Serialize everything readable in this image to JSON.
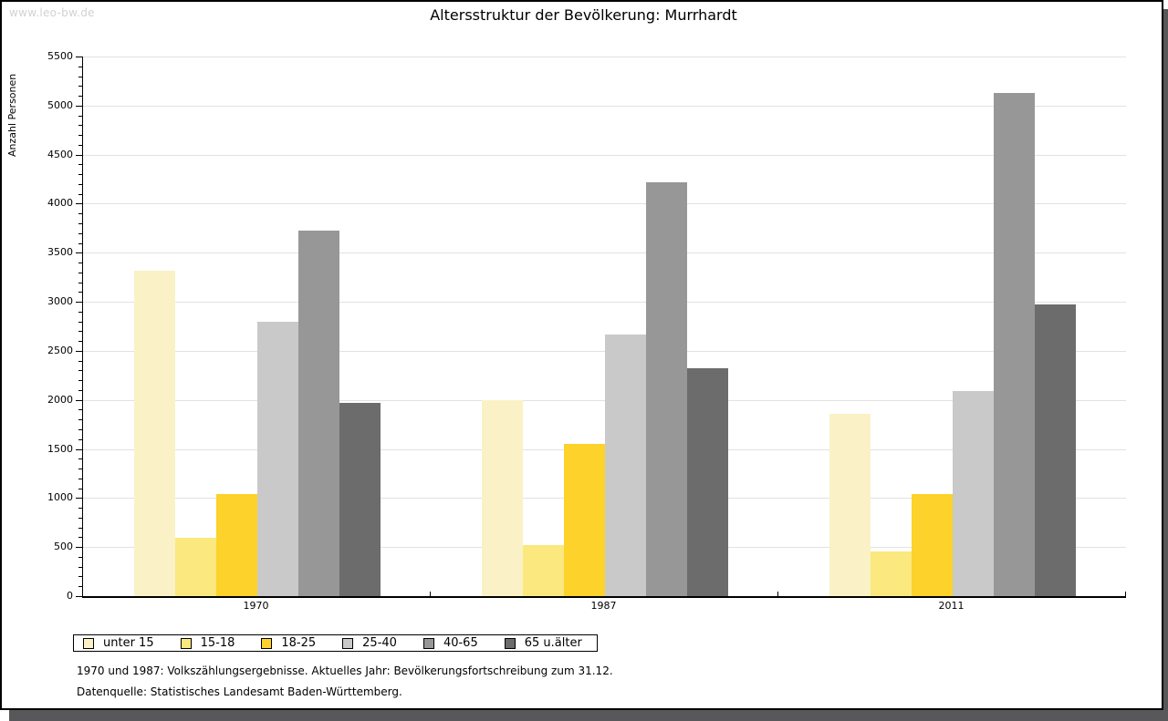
{
  "watermark": "www.leo-bw.de",
  "title": "Altersstruktur der Bevölkerung: Murrhardt",
  "footer": {
    "line1": "1970 und 1987: Volkszählungsergebnisse. Aktuelles Jahr: Bevölkerungsfortschreibung zum 31.12.",
    "line2": "Datenquelle: Statistisches Landesamt Baden-Württemberg."
  },
  "chart_data": {
    "type": "bar",
    "title": "Altersstruktur der Bevölkerung: Murrhardt",
    "xlabel": "",
    "ylabel": "Anzahl Personen",
    "categories": [
      "1970",
      "1987",
      "2011"
    ],
    "series": [
      {
        "name": "unter 15",
        "color": "#faf2c6",
        "values": [
          3315,
          2000,
          1860
        ]
      },
      {
        "name": "15-18",
        "color": "#fbe87e",
        "values": [
          590,
          520,
          455
        ]
      },
      {
        "name": "18-25",
        "color": "#fcd22b",
        "values": [
          1040,
          1555,
          1045
        ]
      },
      {
        "name": "25-40",
        "color": "#c9c9c9",
        "values": [
          2800,
          2670,
          2090
        ]
      },
      {
        "name": "40-65",
        "color": "#979797",
        "values": [
          3730,
          4220,
          5130
        ]
      },
      {
        "name": "65 u.älter",
        "color": "#6c6c6c",
        "values": [
          1970,
          2320,
          2970
        ]
      }
    ],
    "ylim": [
      0,
      5500
    ],
    "ytick_step": 500,
    "ytick_minor_step": 100,
    "yticks": [
      0,
      500,
      1000,
      1500,
      2000,
      2500,
      3000,
      3500,
      4000,
      4500,
      5000,
      5500
    ],
    "grid": true,
    "gridline_color": "#e2e2e2",
    "legend_position": "bottom"
  }
}
